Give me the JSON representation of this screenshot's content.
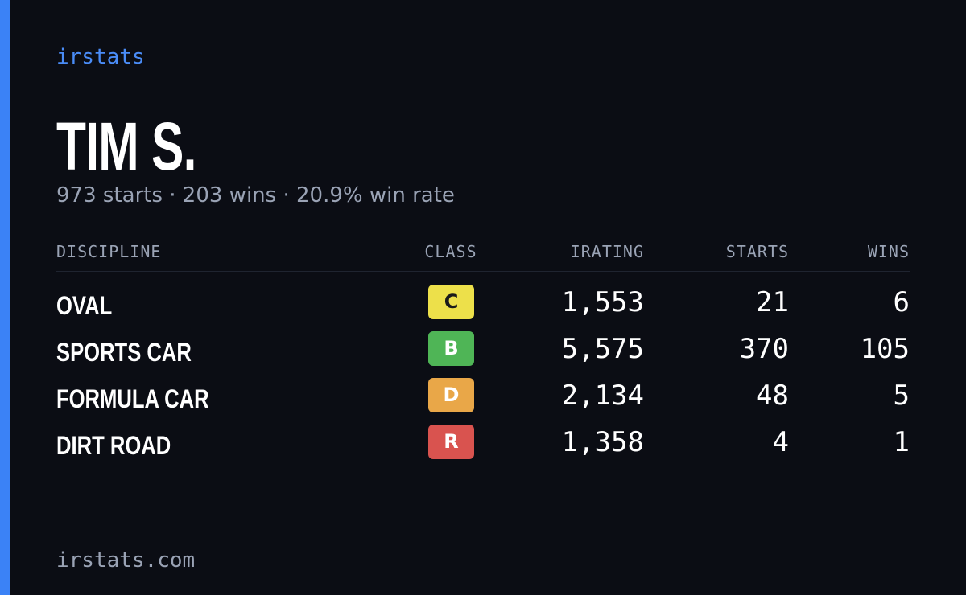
{
  "header": {
    "brand": "irstats",
    "name": "TIM S.",
    "summary": "973 starts · 203 wins · 20.9% win rate"
  },
  "table": {
    "columns": [
      "DISCIPLINE",
      "CLASS",
      "IRATING",
      "STARTS",
      "WINS"
    ],
    "rows": [
      {
        "discipline": "OVAL",
        "class": "C",
        "class_color": "#ede04a",
        "class_text_color": "#1a1a1a",
        "irating": "1,553",
        "starts": "21",
        "wins": "6"
      },
      {
        "discipline": "SPORTS CAR",
        "class": "B",
        "class_color": "#4fb556",
        "class_text_color": "#ffffff",
        "irating": "5,575",
        "starts": "370",
        "wins": "105"
      },
      {
        "discipline": "FORMULA CAR",
        "class": "D",
        "class_color": "#e9a748",
        "class_text_color": "#ffffff",
        "irating": "2,134",
        "starts": "48",
        "wins": "5"
      },
      {
        "discipline": "DIRT ROAD",
        "class": "R",
        "class_color": "#d9534f",
        "class_text_color": "#ffffff",
        "irating": "1,358",
        "starts": "4",
        "wins": "1"
      }
    ]
  },
  "footer": {
    "url": "irstats.com"
  }
}
